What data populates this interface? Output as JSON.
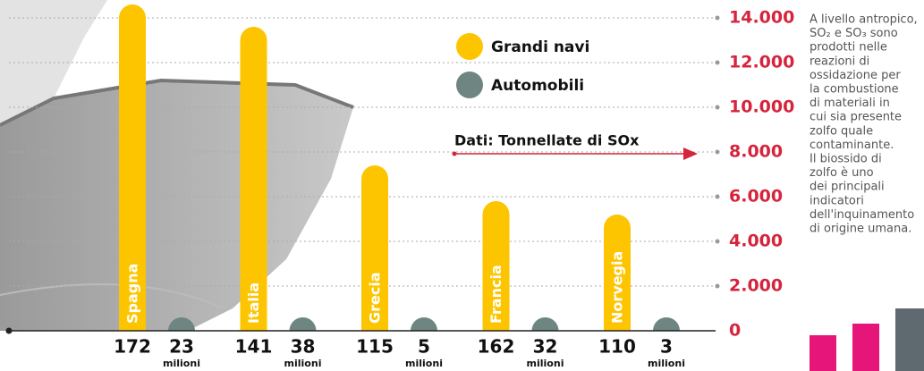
{
  "chart_data": {
    "type": "bar",
    "categories": [
      "Spagna",
      "Italia",
      "Grecia",
      "Francia",
      "Norvegia"
    ],
    "series": [
      {
        "name": "Grandi navi",
        "color": "#fdc500",
        "values": [
          14600,
          13600,
          7400,
          5800,
          5200
        ]
      },
      {
        "name": "Automobili",
        "color": "#6e8582",
        "values": [
          600,
          600,
          600,
          600,
          600
        ]
      }
    ],
    "bottom_labels": [
      {
        "ships": "172",
        "cars": "23",
        "unit": "milioni"
      },
      {
        "ships": "141",
        "cars": "38",
        "unit": "milioni"
      },
      {
        "ships": "115",
        "cars": "5",
        "unit": "milioni"
      },
      {
        "ships": "162",
        "cars": "32",
        "unit": "milioni"
      },
      {
        "ships": "110",
        "cars": "3",
        "unit": "milioni"
      }
    ],
    "annotation": "Dati: Tonnellate di SOx",
    "ylim": [
      0,
      14000
    ],
    "yticks": [
      0,
      {
        "value": 2000,
        "label": "2.000"
      },
      {
        "value": 4000,
        "label": "4.000"
      },
      {
        "value": 6000,
        "label": "6.000"
      },
      {
        "value": 8000,
        "label": "8.000"
      },
      {
        "value": 10000,
        "label": "10.000"
      },
      {
        "value": 12000,
        "label": "12.000"
      },
      {
        "value": 14000,
        "label": "14.000"
      }
    ],
    "grid": true,
    "side_text": [
      "A livello antropico,",
      "SO₂ e SO₃ sono",
      "prodotti nelle",
      "reazioni di",
      "ossidazione per",
      "la combustione",
      "di materiali in",
      "cui sia presente",
      "zolfo quale",
      "contaminante.",
      "Il biossido di",
      "zolfo è uno",
      "dei principali",
      "indicatori",
      "dell'inquinamento",
      "di origine umana."
    ]
  }
}
